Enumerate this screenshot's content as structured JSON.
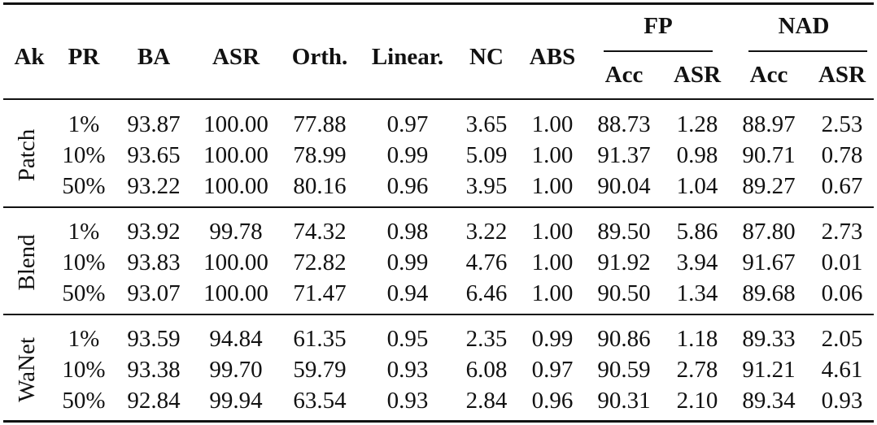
{
  "header": {
    "ak": "Ak",
    "pr": "PR",
    "ba": "BA",
    "asr": "ASR",
    "orth": "Orth.",
    "linear": "Linear.",
    "nc": "NC",
    "abs": "ABS",
    "fp": "FP",
    "nad": "NAD",
    "fp_acc": "Acc",
    "fp_asr": "ASR",
    "nad_acc": "Acc",
    "nad_asr": "ASR"
  },
  "groups": [
    {
      "name": "Patch",
      "rows": [
        [
          "1%",
          "93.87",
          "100.00",
          "77.88",
          "0.97",
          "3.65",
          "1.00",
          "88.73",
          "1.28",
          "88.97",
          "2.53"
        ],
        [
          "10%",
          "93.65",
          "100.00",
          "78.99",
          "0.99",
          "5.09",
          "1.00",
          "91.37",
          "0.98",
          "90.71",
          "0.78"
        ],
        [
          "50%",
          "93.22",
          "100.00",
          "80.16",
          "0.96",
          "3.95",
          "1.00",
          "90.04",
          "1.04",
          "89.27",
          "0.67"
        ]
      ]
    },
    {
      "name": "Blend",
      "rows": [
        [
          "1%",
          "93.92",
          "99.78",
          "74.32",
          "0.98",
          "3.22",
          "1.00",
          "89.50",
          "5.86",
          "87.80",
          "2.73"
        ],
        [
          "10%",
          "93.83",
          "100.00",
          "72.82",
          "0.99",
          "4.76",
          "1.00",
          "91.92",
          "3.94",
          "91.67",
          "0.01"
        ],
        [
          "50%",
          "93.07",
          "100.00",
          "71.47",
          "0.94",
          "6.46",
          "1.00",
          "90.50",
          "1.34",
          "89.68",
          "0.06"
        ]
      ]
    },
    {
      "name": "WaNet",
      "rows": [
        [
          "1%",
          "93.59",
          "94.84",
          "61.35",
          "0.95",
          "2.35",
          "0.99",
          "90.86",
          "1.18",
          "89.33",
          "2.05"
        ],
        [
          "10%",
          "93.38",
          "99.70",
          "59.79",
          "0.93",
          "6.08",
          "0.97",
          "90.59",
          "2.78",
          "91.21",
          "4.61"
        ],
        [
          "50%",
          "92.84",
          "99.94",
          "63.54",
          "0.93",
          "2.84",
          "0.96",
          "90.31",
          "2.10",
          "89.34",
          "0.93"
        ]
      ]
    }
  ]
}
